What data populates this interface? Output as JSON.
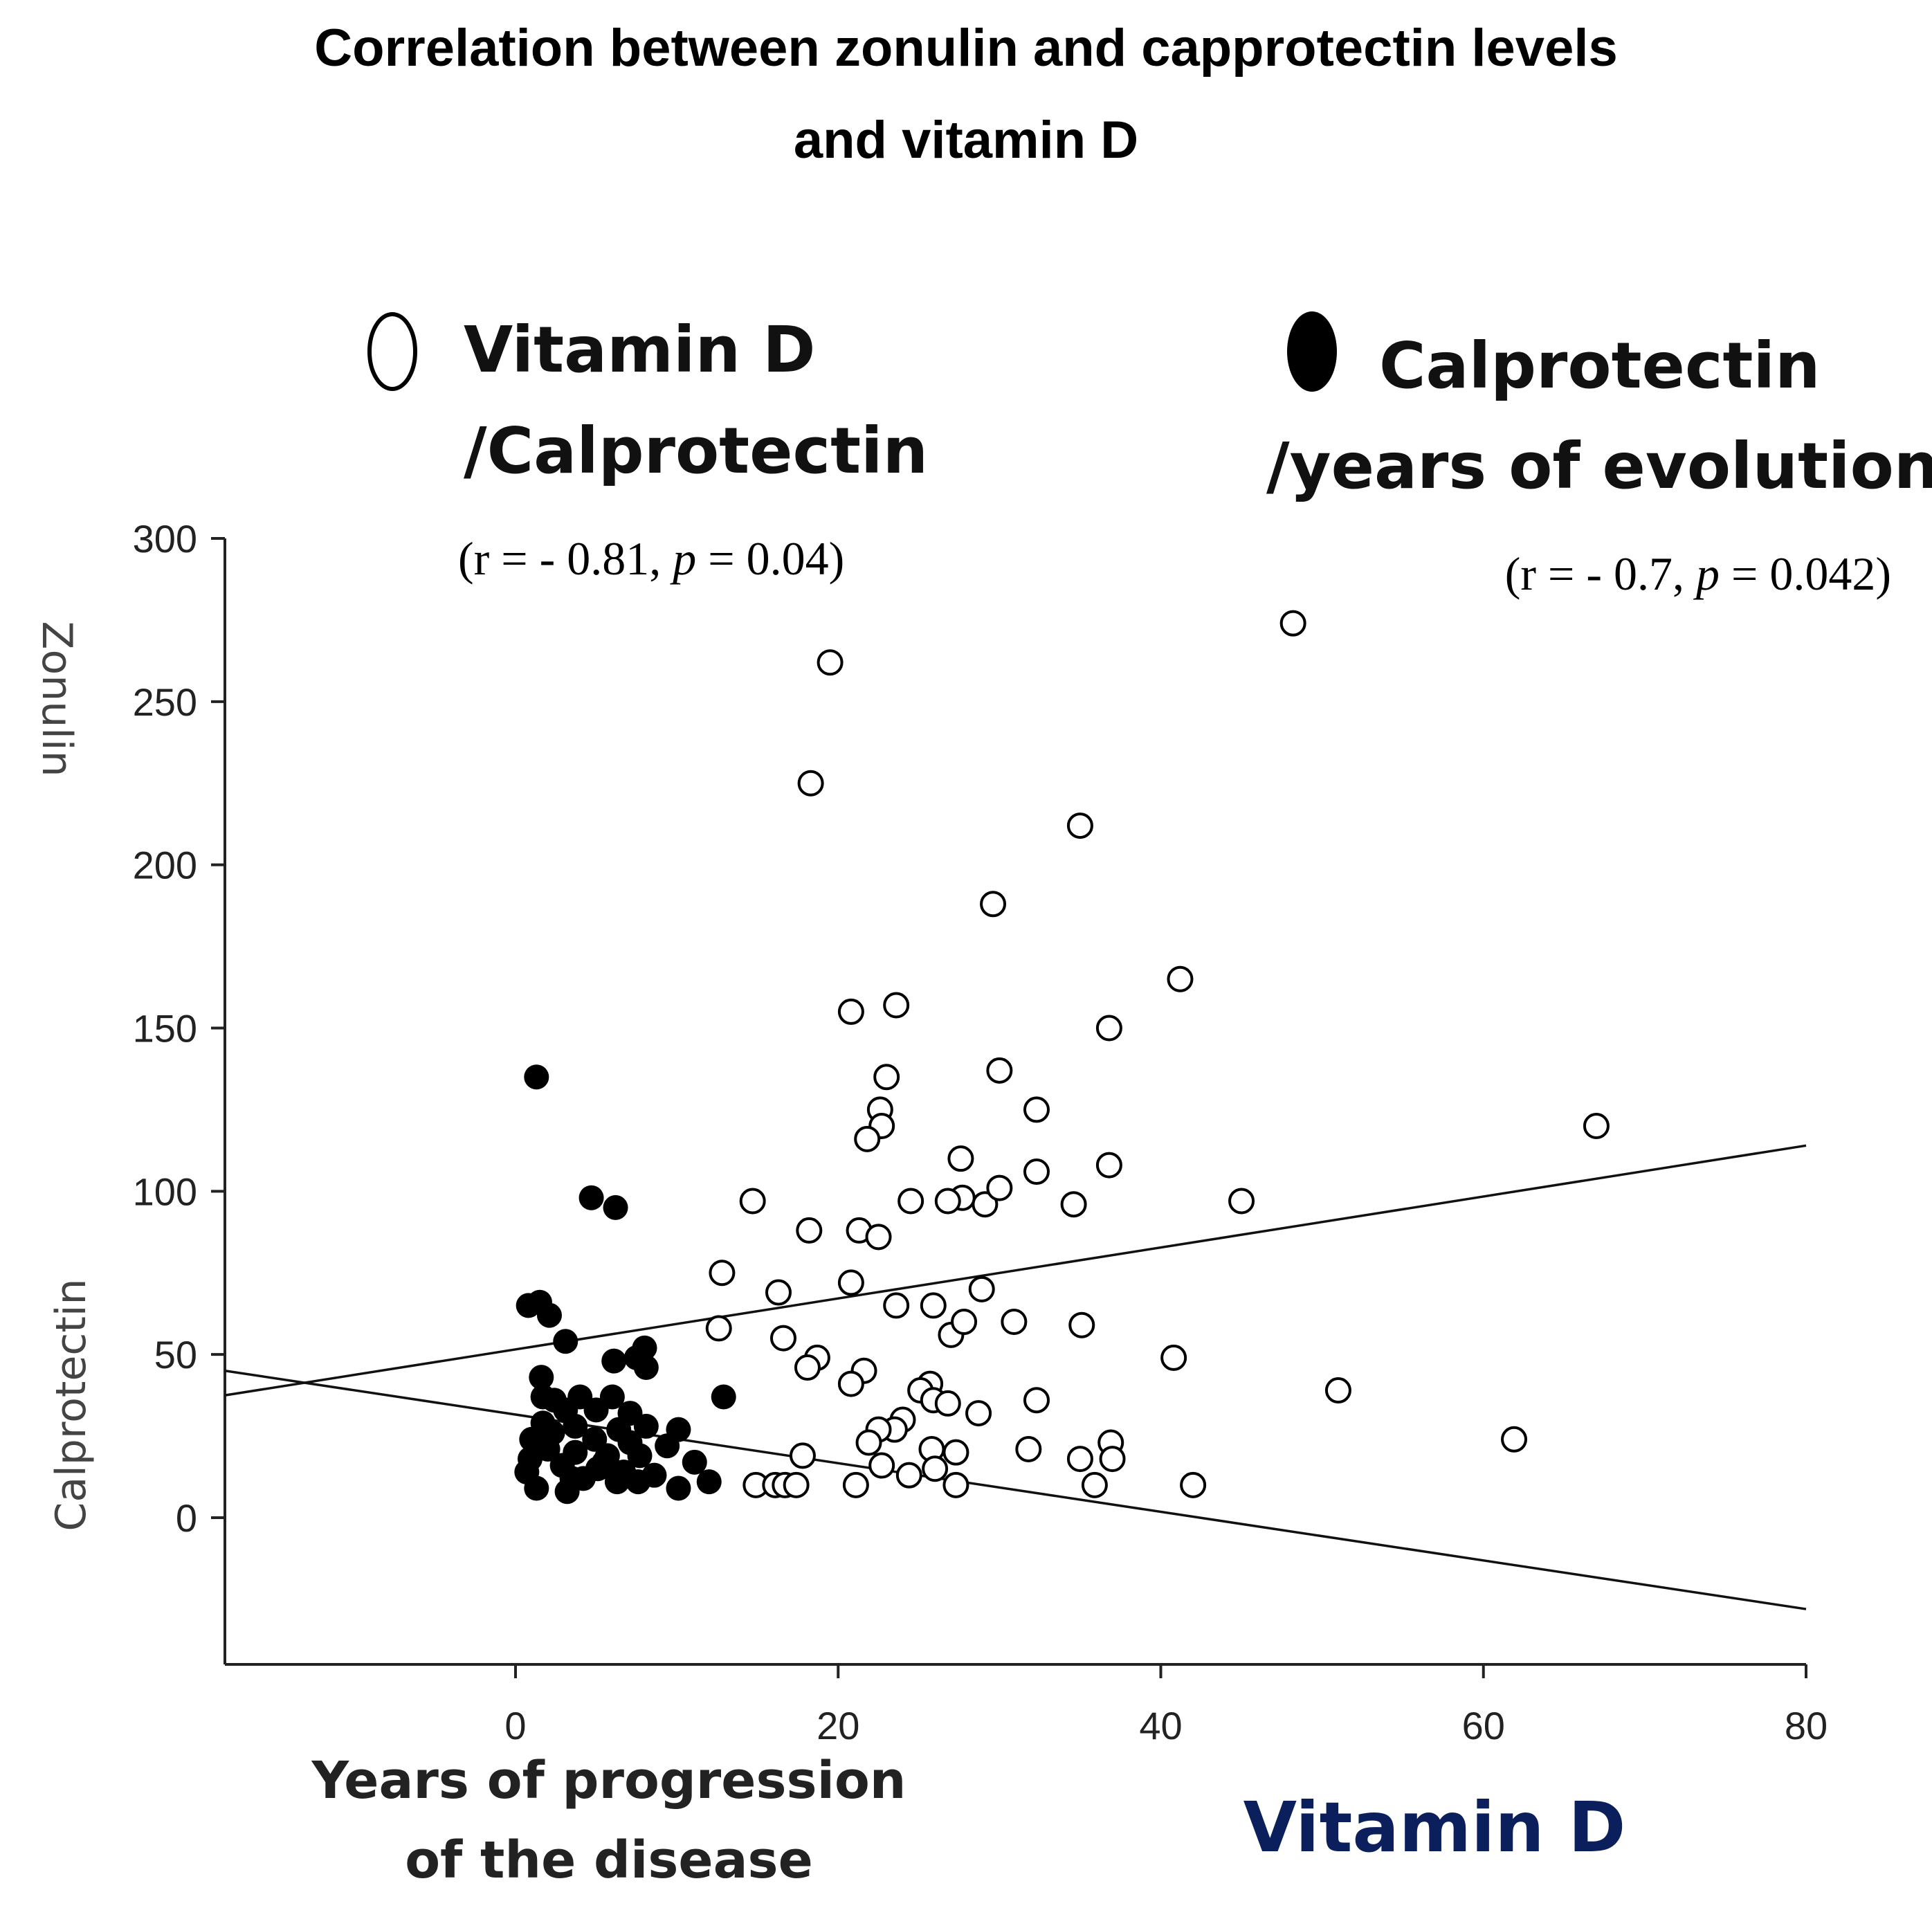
{
  "title": {
    "line1": "Correlation between zonulin and capprotectin levels",
    "line2": "and vitamin D"
  },
  "legend": {
    "vitd": {
      "line1": "Vitamin D",
      "line2": "/Calprotectin",
      "stat_prefix": "(r =  - 0.81, ",
      "stat_p": "p",
      "stat_suffix": " = 0.04)"
    },
    "calp": {
      "line1": "Calprotectin",
      "line2": "/years of evolution",
      "stat_prefix": "(r = - 0.7, ",
      "stat_p": "p",
      "stat_suffix": " =  0.042)"
    }
  },
  "colors": {
    "vitamin_d_label": "#0b1f5c",
    "marker_fill": "#000000",
    "axis": "#222222"
  },
  "chart_data": {
    "type": "scatter",
    "title": "Correlation between zonulin and capprotectin levels and vitamin D",
    "xlabel": "Years of progression of the disease",
    "xlabel_secondary": "Vitamin D",
    "ylabel_upper": "Zonulin",
    "ylabel_lower": "Calprotectin",
    "xlim": [
      -18,
      80
    ],
    "ylim": [
      -45,
      300
    ],
    "x_ticks": [
      0,
      20,
      40,
      60,
      80
    ],
    "y_ticks": [
      0,
      50,
      100,
      150,
      200,
      250,
      300
    ],
    "x_tick_labels": [
      "0",
      "20",
      "40",
      "60",
      "80"
    ],
    "y_tick_labels": [
      "0",
      "50",
      "100",
      "150",
      "200",
      "250",
      "300"
    ],
    "series": [
      {
        "name": "Vitamin D /Calprotectin",
        "marker": "open-circle",
        "points": [
          [
            48.2,
            274
          ],
          [
            19.5,
            262
          ],
          [
            18.3,
            225
          ],
          [
            35.0,
            212
          ],
          [
            29.6,
            188
          ],
          [
            41.2,
            165
          ],
          [
            23.6,
            157
          ],
          [
            20.8,
            155
          ],
          [
            36.8,
            150
          ],
          [
            23.0,
            135
          ],
          [
            30.0,
            137
          ],
          [
            32.3,
            125
          ],
          [
            22.6,
            125
          ],
          [
            22.7,
            120
          ],
          [
            21.8,
            116
          ],
          [
            67.0,
            120
          ],
          [
            27.6,
            110
          ],
          [
            36.8,
            108
          ],
          [
            32.3,
            106
          ],
          [
            29.1,
            96
          ],
          [
            30.0,
            101
          ],
          [
            27.7,
            98
          ],
          [
            26.8,
            97
          ],
          [
            24.5,
            97
          ],
          [
            34.6,
            96
          ],
          [
            45.0,
            97
          ],
          [
            14.7,
            97
          ],
          [
            18.2,
            88
          ],
          [
            21.3,
            88
          ],
          [
            22.5,
            86
          ],
          [
            12.8,
            75
          ],
          [
            20.8,
            72
          ],
          [
            16.3,
            69
          ],
          [
            28.9,
            70
          ],
          [
            23.6,
            65
          ],
          [
            25.9,
            65
          ],
          [
            30.9,
            60
          ],
          [
            35.1,
            59
          ],
          [
            12.6,
            58
          ],
          [
            27.0,
            56
          ],
          [
            27.8,
            60
          ],
          [
            16.6,
            55
          ],
          [
            18.7,
            49
          ],
          [
            18.1,
            46
          ],
          [
            21.6,
            45
          ],
          [
            20.8,
            41
          ],
          [
            25.7,
            41
          ],
          [
            40.8,
            49
          ],
          [
            51.0,
            39
          ],
          [
            32.3,
            36
          ],
          [
            25.1,
            39
          ],
          [
            25.9,
            36
          ],
          [
            26.8,
            35
          ],
          [
            24.0,
            30
          ],
          [
            23.5,
            27
          ],
          [
            28.7,
            32
          ],
          [
            22.5,
            27
          ],
          [
            21.9,
            23
          ],
          [
            25.8,
            21
          ],
          [
            27.3,
            20
          ],
          [
            31.8,
            21
          ],
          [
            36.9,
            23
          ],
          [
            61.9,
            24
          ],
          [
            17.8,
            19
          ],
          [
            35.0,
            18
          ],
          [
            37.0,
            18
          ],
          [
            22.7,
            16
          ],
          [
            26.0,
            15
          ],
          [
            24.4,
            13
          ],
          [
            14.9,
            10
          ],
          [
            16.1,
            10
          ],
          [
            16.7,
            10
          ],
          [
            17.4,
            10
          ],
          [
            21.1,
            10
          ],
          [
            27.3,
            10
          ],
          [
            35.9,
            10
          ],
          [
            42.0,
            10
          ]
        ]
      },
      {
        "name": "Calprotectin /years of evolution",
        "marker": "filled-circle",
        "points": [
          [
            1.3,
            135
          ],
          [
            4.7,
            98
          ],
          [
            6.2,
            95
          ],
          [
            0.8,
            65
          ],
          [
            1.5,
            66
          ],
          [
            2.1,
            62
          ],
          [
            3.1,
            54
          ],
          [
            8.0,
            52
          ],
          [
            7.5,
            49
          ],
          [
            6.1,
            48
          ],
          [
            1.6,
            43
          ],
          [
            8.1,
            46
          ],
          [
            12.9,
            37
          ],
          [
            1.7,
            37
          ],
          [
            2.4,
            36
          ],
          [
            4.0,
            37
          ],
          [
            6.0,
            37
          ],
          [
            3.1,
            33
          ],
          [
            5.0,
            33
          ],
          [
            7.1,
            32
          ],
          [
            1.7,
            29
          ],
          [
            3.7,
            28
          ],
          [
            6.4,
            27
          ],
          [
            8.1,
            28
          ],
          [
            10.1,
            27
          ],
          [
            1.0,
            24
          ],
          [
            2.3,
            26
          ],
          [
            4.9,
            24
          ],
          [
            7.1,
            23
          ],
          [
            9.4,
            22
          ],
          [
            2.0,
            21
          ],
          [
            3.7,
            20
          ],
          [
            5.7,
            19
          ],
          [
            7.7,
            19
          ],
          [
            0.7,
            14
          ],
          [
            2.9,
            16
          ],
          [
            5.1,
            15
          ],
          [
            6.7,
            14
          ],
          [
            8.6,
            13
          ],
          [
            11.1,
            17
          ],
          [
            1.3,
            9
          ],
          [
            3.2,
            8
          ],
          [
            4.2,
            12
          ],
          [
            6.3,
            11
          ],
          [
            7.6,
            11
          ],
          [
            10.1,
            9
          ],
          [
            12.0,
            11
          ],
          [
            0.9,
            18
          ],
          [
            3.5,
            12
          ],
          [
            5.5,
            17
          ]
        ]
      }
    ],
    "trend_lines": [
      {
        "name": "Vitamin D /Calprotectin fit",
        "from": [
          -18,
          37.5
        ],
        "to": [
          80,
          114
        ]
      },
      {
        "name": "Calprotectin /years of evolution fit",
        "from": [
          -18,
          45
        ],
        "to": [
          80,
          -28
        ]
      }
    ],
    "annotations": [
      "(r =  - 0.81, p = 0.04)",
      "(r = - 0.7, p =  0.042)"
    ]
  }
}
